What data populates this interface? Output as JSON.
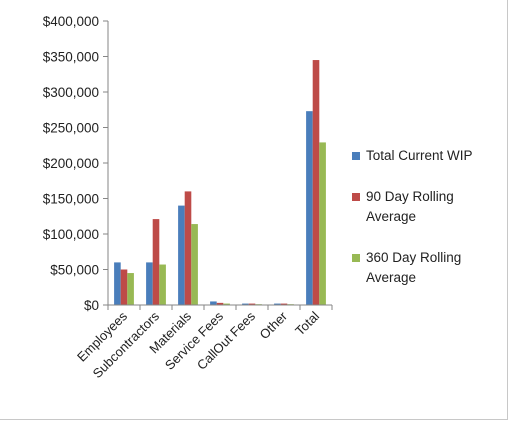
{
  "chart_data": {
    "type": "bar",
    "categories": [
      "Employees",
      "Subcontractors",
      "Materials",
      "Service Fees",
      "CallOut Fees",
      "Other",
      "Total"
    ],
    "series": [
      {
        "name": "Total Current WIP",
        "color": "#4a7ebb",
        "values": [
          60000,
          60000,
          140000,
          5000,
          2000,
          2000,
          273000
        ]
      },
      {
        "name": "90 Day Rolling Average",
        "color": "#be4b48",
        "values": [
          50000,
          121000,
          160000,
          3000,
          2000,
          2000,
          345000
        ]
      },
      {
        "name": "360 Day Rolling Average",
        "color": "#98b954",
        "values": [
          45000,
          57000,
          114000,
          2000,
          1000,
          1000,
          229000
        ]
      }
    ],
    "ylim": [
      0,
      400000
    ],
    "yticks": [
      0,
      50000,
      100000,
      150000,
      200000,
      250000,
      300000,
      350000,
      400000
    ],
    "ytick_labels": [
      "$0",
      "$50,000",
      "$100,000",
      "$150,000",
      "$200,000",
      "$250,000",
      "$300,000",
      "$350,000",
      "$400,000"
    ],
    "grid": false,
    "legend_placement": "right"
  },
  "legend": {
    "lines": [
      [
        "Total Current WIP"
      ],
      [
        "90 Day Rolling",
        "Average"
      ],
      [
        "360 Day Rolling",
        "Average"
      ]
    ]
  }
}
